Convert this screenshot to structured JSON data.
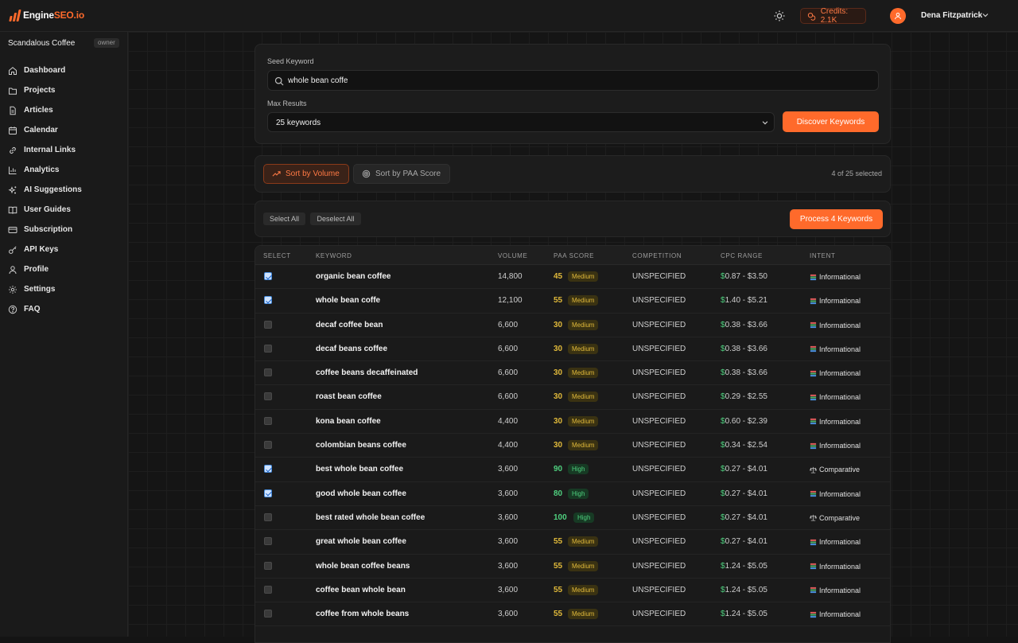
{
  "app": {
    "logo_part1": "Engine",
    "logo_part2": "SEO.io",
    "credits": "Credits: 2.1K",
    "user_name": "Dena Fitzpatrick",
    "accent": "#ff6a2b"
  },
  "sidebar": {
    "workspace": "Scandalous Coffee",
    "role": "owner",
    "items": [
      {
        "label": "Dashboard",
        "icon": "home-icon"
      },
      {
        "label": "Projects",
        "icon": "folder-icon"
      },
      {
        "label": "Articles",
        "icon": "document-icon"
      },
      {
        "label": "Calendar",
        "icon": "calendar-icon"
      },
      {
        "label": "Internal Links",
        "icon": "link-icon"
      },
      {
        "label": "Analytics",
        "icon": "bar-chart-icon"
      },
      {
        "label": "AI Suggestions",
        "icon": "sparkles-icon"
      },
      {
        "label": "User Guides",
        "icon": "book-icon"
      },
      {
        "label": "Subscription",
        "icon": "credit-card-icon"
      },
      {
        "label": "API Keys",
        "icon": "key-icon"
      },
      {
        "label": "Profile",
        "icon": "user-icon"
      },
      {
        "label": "Settings",
        "icon": "gear-icon"
      },
      {
        "label": "FAQ",
        "icon": "help-circle-icon"
      }
    ]
  },
  "search": {
    "seed_label": "Seed Keyword",
    "seed_value": "whole bean coffe",
    "max_label": "Max Results",
    "max_value": "25 keywords",
    "discover_label": "Discover Keywords"
  },
  "sorting": {
    "by_volume": "Sort by Volume",
    "by_paa": "Sort by PAA Score",
    "selected_count": "4 of 25 selected"
  },
  "actions": {
    "select_all": "Select All",
    "deselect_all": "Deselect All",
    "process": "Process 4 Keywords"
  },
  "table": {
    "headers": [
      "SELECT",
      "KEYWORD",
      "VOLUME",
      "PAA SCORE",
      "COMPETITION",
      "CPC RANGE",
      "INTENT"
    ],
    "rows": [
      {
        "checked": true,
        "keyword": "organic bean coffee",
        "volume": "14,800",
        "score": "45",
        "level": "Medium",
        "competition": "UNSPECIFIED",
        "cpc": "0.87 - $3.50",
        "intent": "Informational"
      },
      {
        "checked": true,
        "keyword": "whole bean coffe",
        "volume": "12,100",
        "score": "55",
        "level": "Medium",
        "competition": "UNSPECIFIED",
        "cpc": "1.40 - $5.21",
        "intent": "Informational"
      },
      {
        "checked": false,
        "keyword": "decaf coffee bean",
        "volume": "6,600",
        "score": "30",
        "level": "Medium",
        "competition": "UNSPECIFIED",
        "cpc": "0.38 - $3.66",
        "intent": "Informational"
      },
      {
        "checked": false,
        "keyword": "decaf beans coffee",
        "volume": "6,600",
        "score": "30",
        "level": "Medium",
        "competition": "UNSPECIFIED",
        "cpc": "0.38 - $3.66",
        "intent": "Informational"
      },
      {
        "checked": false,
        "keyword": "coffee beans decaffeinated",
        "volume": "6,600",
        "score": "30",
        "level": "Medium",
        "competition": "UNSPECIFIED",
        "cpc": "0.38 - $3.66",
        "intent": "Informational"
      },
      {
        "checked": false,
        "keyword": "roast bean coffee",
        "volume": "6,600",
        "score": "30",
        "level": "Medium",
        "competition": "UNSPECIFIED",
        "cpc": "0.29 - $2.55",
        "intent": "Informational"
      },
      {
        "checked": false,
        "keyword": "kona bean coffee",
        "volume": "4,400",
        "score": "30",
        "level": "Medium",
        "competition": "UNSPECIFIED",
        "cpc": "0.60 - $2.39",
        "intent": "Informational"
      },
      {
        "checked": false,
        "keyword": "colombian beans coffee",
        "volume": "4,400",
        "score": "30",
        "level": "Medium",
        "competition": "UNSPECIFIED",
        "cpc": "0.34 - $2.54",
        "intent": "Informational"
      },
      {
        "checked": true,
        "keyword": "best whole bean coffee",
        "volume": "3,600",
        "score": "90",
        "level": "High",
        "competition": "UNSPECIFIED",
        "cpc": "0.27 - $4.01",
        "intent": "Comparative"
      },
      {
        "checked": true,
        "keyword": "good whole bean coffee",
        "volume": "3,600",
        "score": "80",
        "level": "High",
        "competition": "UNSPECIFIED",
        "cpc": "0.27 - $4.01",
        "intent": "Informational"
      },
      {
        "checked": false,
        "keyword": "best rated whole bean coffee",
        "volume": "3,600",
        "score": "100",
        "level": "High",
        "competition": "UNSPECIFIED",
        "cpc": "0.27 - $4.01",
        "intent": "Comparative"
      },
      {
        "checked": false,
        "keyword": "great whole bean coffee",
        "volume": "3,600",
        "score": "55",
        "level": "Medium",
        "competition": "UNSPECIFIED",
        "cpc": "0.27 - $4.01",
        "intent": "Informational"
      },
      {
        "checked": false,
        "keyword": "whole bean coffee beans",
        "volume": "3,600",
        "score": "55",
        "level": "Medium",
        "competition": "UNSPECIFIED",
        "cpc": "1.24 - $5.05",
        "intent": "Informational"
      },
      {
        "checked": false,
        "keyword": "coffee bean whole bean",
        "volume": "3,600",
        "score": "55",
        "level": "Medium",
        "competition": "UNSPECIFIED",
        "cpc": "1.24 - $5.05",
        "intent": "Informational"
      },
      {
        "checked": false,
        "keyword": "coffee from whole beans",
        "volume": "3,600",
        "score": "55",
        "level": "Medium",
        "competition": "UNSPECIFIED",
        "cpc": "1.24 - $5.05",
        "intent": "Informational"
      }
    ]
  }
}
